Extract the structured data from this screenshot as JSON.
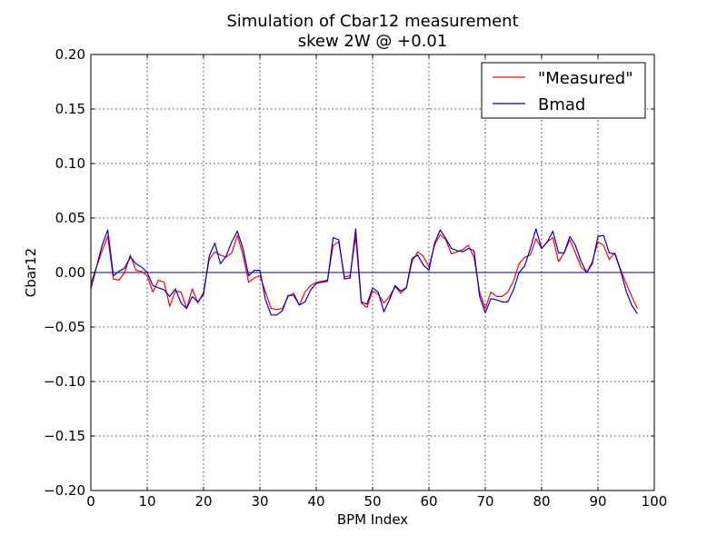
{
  "chart_data": {
    "type": "line",
    "title": "Simulation of Cbar12 measurement",
    "subtitle": "skew 2W @ +0.01",
    "xlabel": "BPM Index",
    "ylabel": "Cbar12",
    "xlim": [
      0,
      100
    ],
    "ylim": [
      -0.2,
      0.2
    ],
    "xticks": [
      0,
      10,
      20,
      30,
      40,
      50,
      60,
      70,
      80,
      90,
      100
    ],
    "yticks": [
      -0.2,
      -0.15,
      -0.1,
      -0.05,
      0.0,
      0.05,
      0.1,
      0.15,
      0.2
    ],
    "xtick_labels": [
      "0",
      "10",
      "20",
      "30",
      "40",
      "50",
      "60",
      "70",
      "80",
      "90",
      "100"
    ],
    "ytick_labels": [
      "−0.20",
      "−0.15",
      "−0.10",
      "−0.05",
      "0.00",
      "0.05",
      "0.10",
      "0.15",
      "0.20"
    ],
    "grid": true,
    "legend_position": "top-right",
    "zero_line": {
      "y": 0,
      "color": "#00008b"
    },
    "series": [
      {
        "name": "\"Measured\"",
        "color": "#ff0000",
        "x": [
          0,
          1,
          2,
          3,
          4,
          5,
          6,
          7,
          8,
          9,
          10,
          11,
          12,
          13,
          14,
          15,
          16,
          17,
          18,
          19,
          20,
          21,
          22,
          23,
          24,
          25,
          26,
          27,
          28,
          29,
          30,
          31,
          32,
          33,
          34,
          35,
          36,
          37,
          38,
          39,
          40,
          41,
          42,
          43,
          44,
          45,
          46,
          47,
          48,
          49,
          50,
          51,
          52,
          53,
          54,
          55,
          56,
          57,
          58,
          59,
          60,
          61,
          62,
          63,
          64,
          65,
          66,
          67,
          68,
          69,
          70,
          71,
          72,
          73,
          74,
          75,
          76,
          77,
          78,
          79,
          80,
          81,
          82,
          83,
          84,
          85,
          86,
          87,
          88,
          89,
          90,
          91,
          92,
          93,
          94,
          95,
          96,
          97
        ],
        "y": [
          -0.01,
          0.005,
          0.02,
          0.033,
          -0.006,
          -0.007,
          0.0,
          0.016,
          0.002,
          0.001,
          -0.003,
          -0.018,
          -0.007,
          -0.009,
          -0.031,
          -0.017,
          -0.018,
          -0.033,
          -0.015,
          -0.028,
          -0.018,
          0.012,
          0.019,
          0.016,
          0.014,
          0.018,
          0.034,
          0.016,
          -0.009,
          -0.005,
          -0.003,
          -0.018,
          -0.033,
          -0.034,
          -0.033,
          -0.022,
          -0.019,
          -0.03,
          -0.018,
          -0.012,
          -0.009,
          -0.008,
          -0.007,
          0.025,
          0.028,
          -0.004,
          -0.003,
          0.033,
          -0.028,
          -0.032,
          -0.017,
          -0.02,
          -0.028,
          -0.022,
          -0.013,
          -0.019,
          -0.014,
          0.01,
          0.019,
          0.015,
          0.005,
          0.025,
          0.035,
          0.03,
          0.017,
          0.019,
          0.021,
          0.025,
          0.014,
          -0.018,
          -0.033,
          -0.018,
          -0.022,
          -0.022,
          -0.018,
          -0.008,
          0.008,
          0.014,
          0.016,
          0.031,
          0.022,
          0.028,
          0.032,
          0.01,
          0.018,
          0.03,
          0.018,
          0.005,
          0.0,
          0.01,
          0.028,
          0.025,
          0.012,
          0.018,
          0.003,
          -0.01,
          -0.022,
          -0.033
        ]
      },
      {
        "name": "Bmad",
        "color": "#0000cc",
        "x": [
          0,
          1,
          2,
          3,
          4,
          5,
          6,
          7,
          8,
          9,
          10,
          11,
          12,
          13,
          14,
          15,
          16,
          17,
          18,
          19,
          20,
          21,
          22,
          23,
          24,
          25,
          26,
          27,
          28,
          29,
          30,
          31,
          32,
          33,
          34,
          35,
          36,
          37,
          38,
          39,
          40,
          41,
          42,
          43,
          44,
          45,
          46,
          47,
          48,
          49,
          50,
          51,
          52,
          53,
          54,
          55,
          56,
          57,
          58,
          59,
          60,
          61,
          62,
          63,
          64,
          65,
          66,
          67,
          68,
          69,
          70,
          71,
          72,
          73,
          74,
          75,
          76,
          77,
          78,
          79,
          80,
          81,
          82,
          83,
          84,
          85,
          86,
          87,
          88,
          89,
          90,
          91,
          92,
          93,
          94,
          95,
          96,
          97
        ],
        "y": [
          -0.015,
          0.005,
          0.025,
          0.039,
          -0.003,
          0.001,
          0.004,
          0.014,
          0.008,
          0.005,
          0.0,
          -0.012,
          -0.014,
          -0.016,
          -0.022,
          -0.015,
          -0.028,
          -0.033,
          -0.022,
          -0.027,
          -0.02,
          0.015,
          0.027,
          0.008,
          0.015,
          0.028,
          0.038,
          0.022,
          -0.003,
          0.002,
          0.002,
          -0.025,
          -0.039,
          -0.039,
          -0.035,
          -0.021,
          -0.021,
          -0.03,
          -0.027,
          -0.016,
          -0.01,
          -0.009,
          -0.008,
          0.032,
          0.03,
          -0.006,
          -0.005,
          0.04,
          -0.027,
          -0.029,
          -0.014,
          -0.018,
          -0.036,
          -0.025,
          -0.012,
          -0.017,
          -0.014,
          0.013,
          0.016,
          0.007,
          0.002,
          0.027,
          0.039,
          0.031,
          0.022,
          0.02,
          0.019,
          0.022,
          0.02,
          -0.022,
          -0.037,
          -0.024,
          -0.025,
          -0.027,
          -0.027,
          -0.016,
          0.0,
          0.006,
          0.022,
          0.04,
          0.022,
          0.028,
          0.038,
          0.018,
          0.018,
          0.033,
          0.025,
          0.01,
          0.0,
          0.008,
          0.033,
          0.034,
          0.018,
          0.017,
          0.002,
          -0.017,
          -0.03,
          -0.038
        ]
      }
    ]
  }
}
